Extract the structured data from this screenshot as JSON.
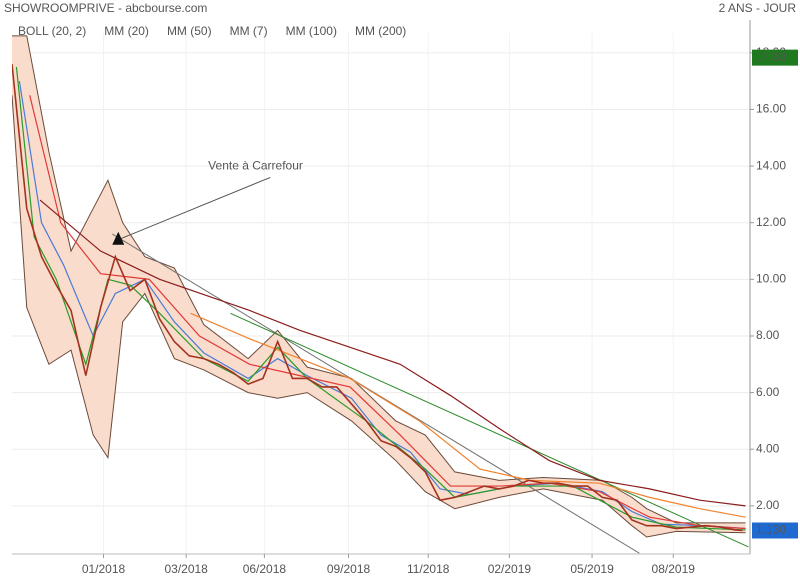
{
  "chart_data": {
    "type": "line",
    "title": "SHOWROOMPRIVE - abcbourse.com",
    "subtitle": "2 ANS - JOUR",
    "xlim": [
      0,
      500
    ],
    "ylim": [
      0.3,
      18.7
    ],
    "xticks": [
      {
        "value": 62,
        "label": "01/2018"
      },
      {
        "value": 118,
        "label": "03/2018"
      },
      {
        "value": 171,
        "label": "06/2018"
      },
      {
        "value": 228,
        "label": "09/2018"
      },
      {
        "value": 282,
        "label": "11/2018"
      },
      {
        "value": 337,
        "label": "02/2019"
      },
      {
        "value": 393,
        "label": "05/2019"
      },
      {
        "value": 448,
        "label": "08/2019"
      }
    ],
    "yticks": [
      {
        "value": 2,
        "label": "2.00"
      },
      {
        "value": 4,
        "label": "4.00"
      },
      {
        "value": 6,
        "label": "6.00"
      },
      {
        "value": 8,
        "label": "8.00"
      },
      {
        "value": 10,
        "label": "10.00"
      },
      {
        "value": 12,
        "label": "12.00"
      },
      {
        "value": 14,
        "label": "14.00"
      },
      {
        "value": 16,
        "label": "16.00"
      },
      {
        "value": 18,
        "label": "18.00"
      }
    ],
    "grid": true,
    "bollinger": {
      "name": "BOLL (20, 2)",
      "color": "#6b4a3a",
      "fill": "#f9dccb",
      "x": [
        0,
        10,
        25,
        40,
        55,
        65,
        75,
        90,
        110,
        130,
        160,
        180,
        200,
        230,
        260,
        280,
        300,
        330,
        360,
        400,
        420,
        430,
        450,
        497
      ],
      "upper": [
        18.6,
        18.6,
        14.5,
        11.0,
        12.5,
        13.5,
        12.0,
        10.8,
        10.4,
        8.4,
        7.2,
        8.2,
        6.9,
        6.5,
        5.0,
        4.5,
        3.2,
        2.9,
        3.0,
        2.9,
        2.3,
        1.9,
        1.4,
        1.4
      ],
      "lower": [
        16.5,
        9.0,
        7.0,
        7.5,
        4.5,
        3.7,
        8.5,
        9.5,
        7.2,
        6.8,
        6.0,
        5.8,
        6.0,
        5.0,
        3.6,
        2.5,
        1.9,
        2.3,
        2.6,
        2.2,
        1.3,
        0.9,
        1.1,
        1.05
      ]
    },
    "series": [
      {
        "color": "#a5321f",
        "x": [
          0,
          10,
          20,
          30,
          40,
          50,
          60,
          70,
          80,
          90,
          100,
          110,
          120,
          130,
          140,
          150,
          160,
          170,
          180,
          190,
          200,
          210,
          220,
          230,
          240,
          250,
          260,
          270,
          280,
          290,
          300,
          310,
          320,
          330,
          340,
          350,
          360,
          370,
          380,
          390,
          400,
          410,
          420,
          430,
          440,
          450,
          460,
          470,
          480,
          490,
          495
        ],
        "values": [
          17.6,
          12.5,
          10.8,
          9.8,
          8.9,
          6.6,
          9.0,
          10.8,
          9.6,
          10.0,
          8.6,
          7.8,
          7.3,
          7.2,
          7.0,
          6.7,
          6.3,
          6.5,
          7.8,
          6.5,
          6.5,
          6.2,
          6.2,
          5.6,
          5.0,
          4.3,
          4.1,
          3.7,
          3.2,
          2.2,
          2.3,
          2.5,
          2.7,
          2.6,
          2.7,
          2.9,
          2.8,
          2.8,
          2.7,
          2.7,
          2.3,
          2.2,
          1.5,
          1.3,
          1.3,
          1.2,
          1.25,
          1.3,
          1.25,
          1.15,
          1.13
        ]
      },
      {
        "name": "MM (20)",
        "color": "#4a7bd8",
        "x": [
          5,
          20,
          35,
          55,
          70,
          90,
          110,
          130,
          160,
          180,
          200,
          230,
          250,
          270,
          290,
          310,
          340,
          370,
          400,
          420,
          440,
          470,
          497
        ],
        "values": [
          17.0,
          12.0,
          10.5,
          8.0,
          9.5,
          10.0,
          8.5,
          7.4,
          6.5,
          7.2,
          6.6,
          5.8,
          4.5,
          3.9,
          2.6,
          2.4,
          2.7,
          2.8,
          2.5,
          1.8,
          1.35,
          1.3,
          1.2
        ]
      },
      {
        "name": "MM (50)",
        "color": "#e03a3a",
        "x": [
          12,
          33,
          60,
          93,
          127,
          161,
          195,
          229,
          263,
          297,
          331,
          364,
          398,
          432,
          466,
          497
        ],
        "values": [
          16.5,
          12.0,
          10.2,
          10.0,
          8.0,
          7.0,
          6.6,
          6.2,
          4.5,
          2.7,
          2.7,
          2.8,
          2.5,
          1.6,
          1.3,
          1.2
        ]
      },
      {
        "name": "MM (7)",
        "color": "#2a9a2a",
        "x": [
          3,
          15,
          30,
          50,
          65,
          80,
          100,
          130,
          160,
          180,
          200,
          240,
          280,
          300,
          340,
          380,
          420,
          450,
          497
        ],
        "values": [
          17.5,
          11.5,
          10.0,
          7.0,
          10.0,
          9.8,
          8.8,
          7.2,
          6.4,
          7.6,
          6.5,
          5.0,
          3.3,
          2.3,
          2.7,
          2.7,
          1.6,
          1.25,
          1.15
        ]
      },
      {
        "name": "MM (100)",
        "color": "#f0822e",
        "x": [
          121,
          161,
          229,
          276,
          317,
          351,
          398,
          432,
          466,
          497
        ],
        "values": [
          8.8,
          7.9,
          6.5,
          5.0,
          3.3,
          2.9,
          2.8,
          2.3,
          1.9,
          1.6
        ]
      },
      {
        "name": "MM (200)",
        "color": "#8b1c1c",
        "x": [
          19,
          60,
          100,
          161,
          195,
          263,
          297,
          331,
          364,
          398,
          432,
          466,
          497
        ],
        "values": [
          12.8,
          11.0,
          10.0,
          8.9,
          8.2,
          7.0,
          5.9,
          4.7,
          3.6,
          2.9,
          2.6,
          2.2,
          2.0
        ]
      }
    ],
    "trendlines": [
      {
        "color": "#707070",
        "x": [
          68,
          425
        ],
        "values": [
          11.6,
          0.33
        ]
      },
      {
        "color": "#2a8a2a",
        "x": [
          148,
          499
        ],
        "values": [
          8.8,
          0.55
        ]
      }
    ],
    "annotation": {
      "text": "Vente à Carrefour",
      "x": 165,
      "y": 14.0,
      "arrow_x": [
        175,
        72
      ],
      "arrow_y": [
        13.6,
        11.4
      ]
    },
    "markers": [
      {
        "value": 17.83,
        "label": "17.83",
        "color": "#1f7a1f"
      },
      {
        "value": 1.13,
        "label": "1.130",
        "color": "#1e6ad0"
      }
    ]
  }
}
